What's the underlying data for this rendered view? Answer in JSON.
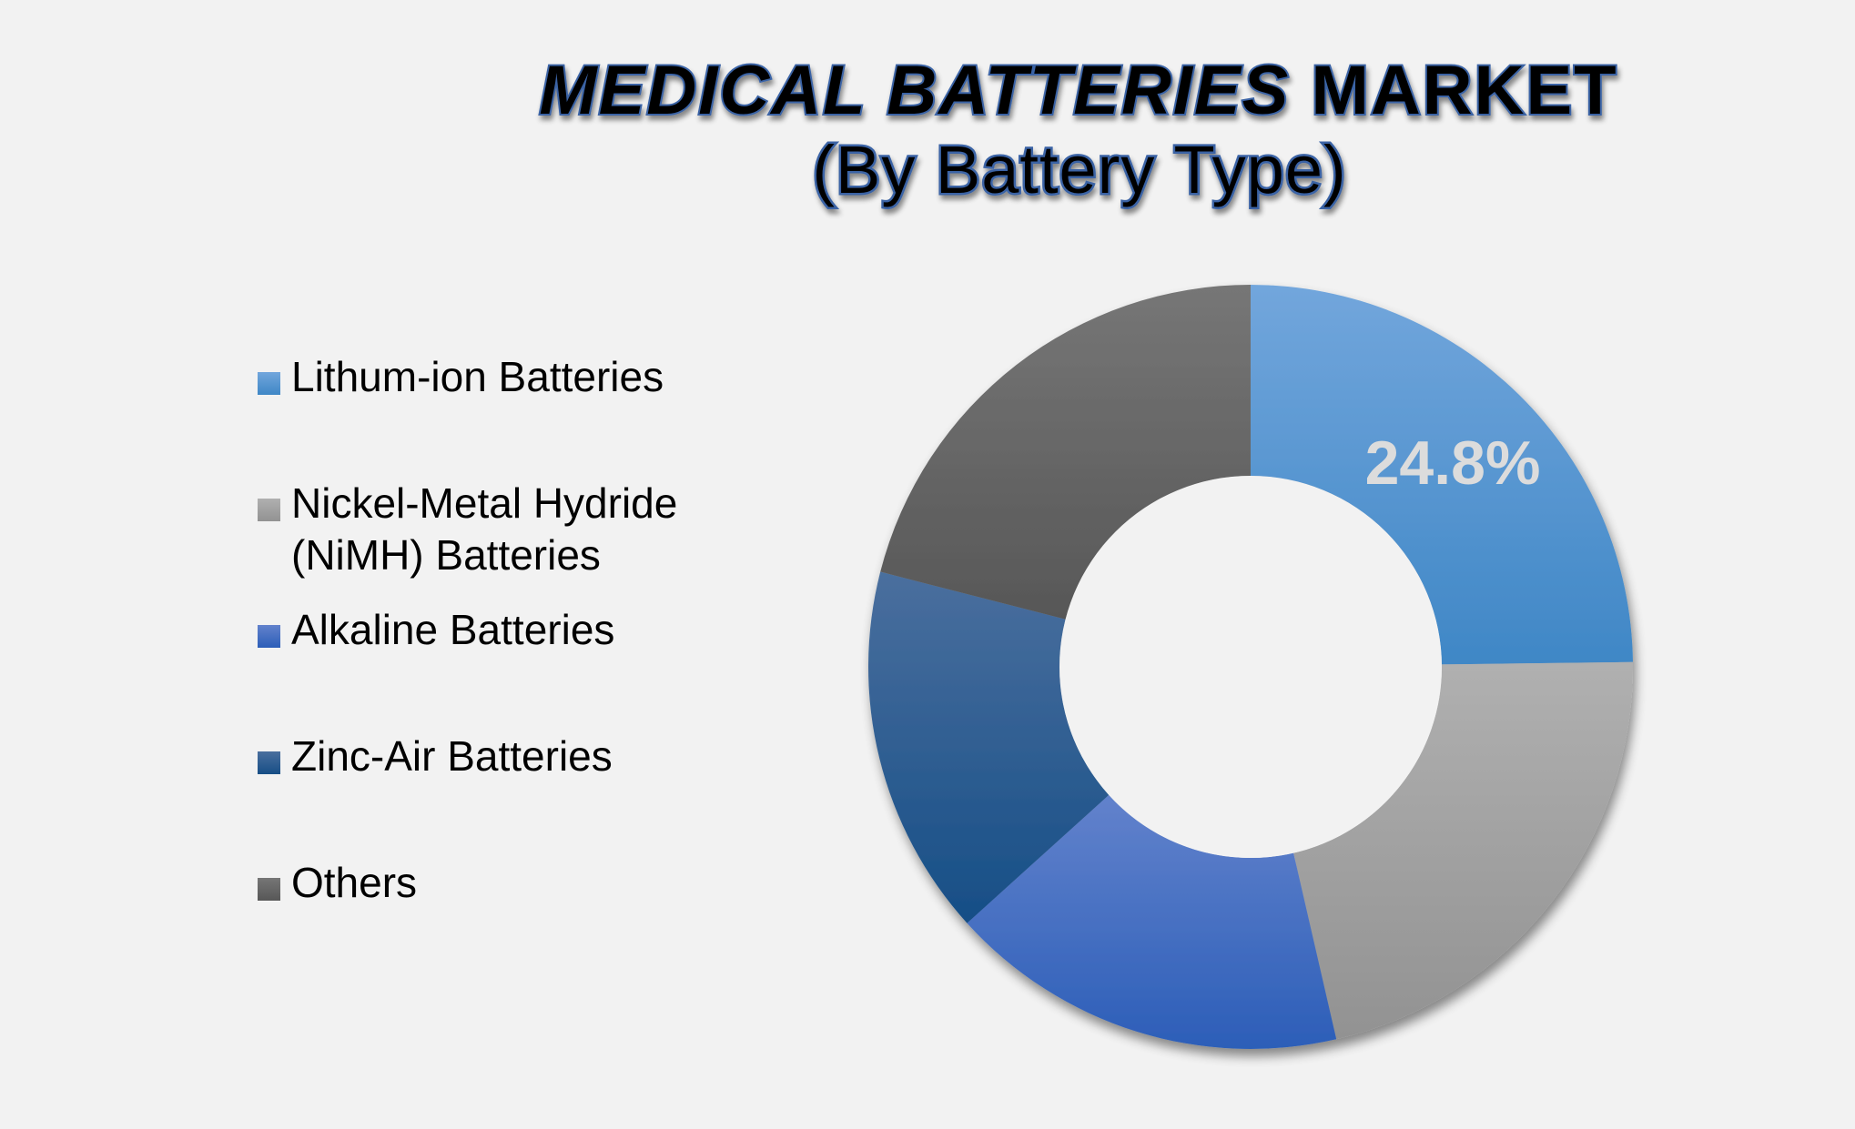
{
  "title": {
    "line1_italic": "MEDICAL BATTERIES",
    "line1_regular": " MARKET",
    "line2": "(By Battery Type)"
  },
  "legend": {
    "items": [
      {
        "label": "Lithum-ion Batteries",
        "color_top": "#72a6dc",
        "color_bottom": "#3f87c6"
      },
      {
        "label": "Nickel-Metal Hydride\n(NiMH) Batteries",
        "color_top": "#b0b0b0",
        "color_bottom": "#929292"
      },
      {
        "label": "Alkaline Batteries",
        "color_top": "#6282cc",
        "color_bottom": "#2c5eb8"
      },
      {
        "label": "Zinc-Air Batteries",
        "color_top": "#4a6f9e",
        "color_bottom": "#164e86"
      },
      {
        "label": "Others",
        "color_top": "#767676",
        "color_bottom": "#575757"
      }
    ]
  },
  "colors": {
    "background": "#f2f2f2",
    "title_fill": "#000000",
    "title_outline": "#3a63a5",
    "data_label": "#dcdcdc"
  },
  "chart_data": {
    "type": "pie",
    "subtype": "donut",
    "title": "MEDICAL BATTERIES MARKET (By Battery Type)",
    "categories": [
      "Lithum-ion Batteries",
      "Nickel-Metal Hydride (NiMH) Batteries",
      "Alkaline Batteries",
      "Zinc-Air Batteries",
      "Others"
    ],
    "values": [
      24.8,
      21.6,
      16.9,
      15.7,
      21.0
    ],
    "unit": "%",
    "data_labels": [
      {
        "category": "Lithum-ion Batteries",
        "text": "24.8%"
      }
    ],
    "start_angle_deg": 0,
    "direction": "clockwise",
    "hole_ratio": 0.5,
    "legend_position": "left"
  }
}
